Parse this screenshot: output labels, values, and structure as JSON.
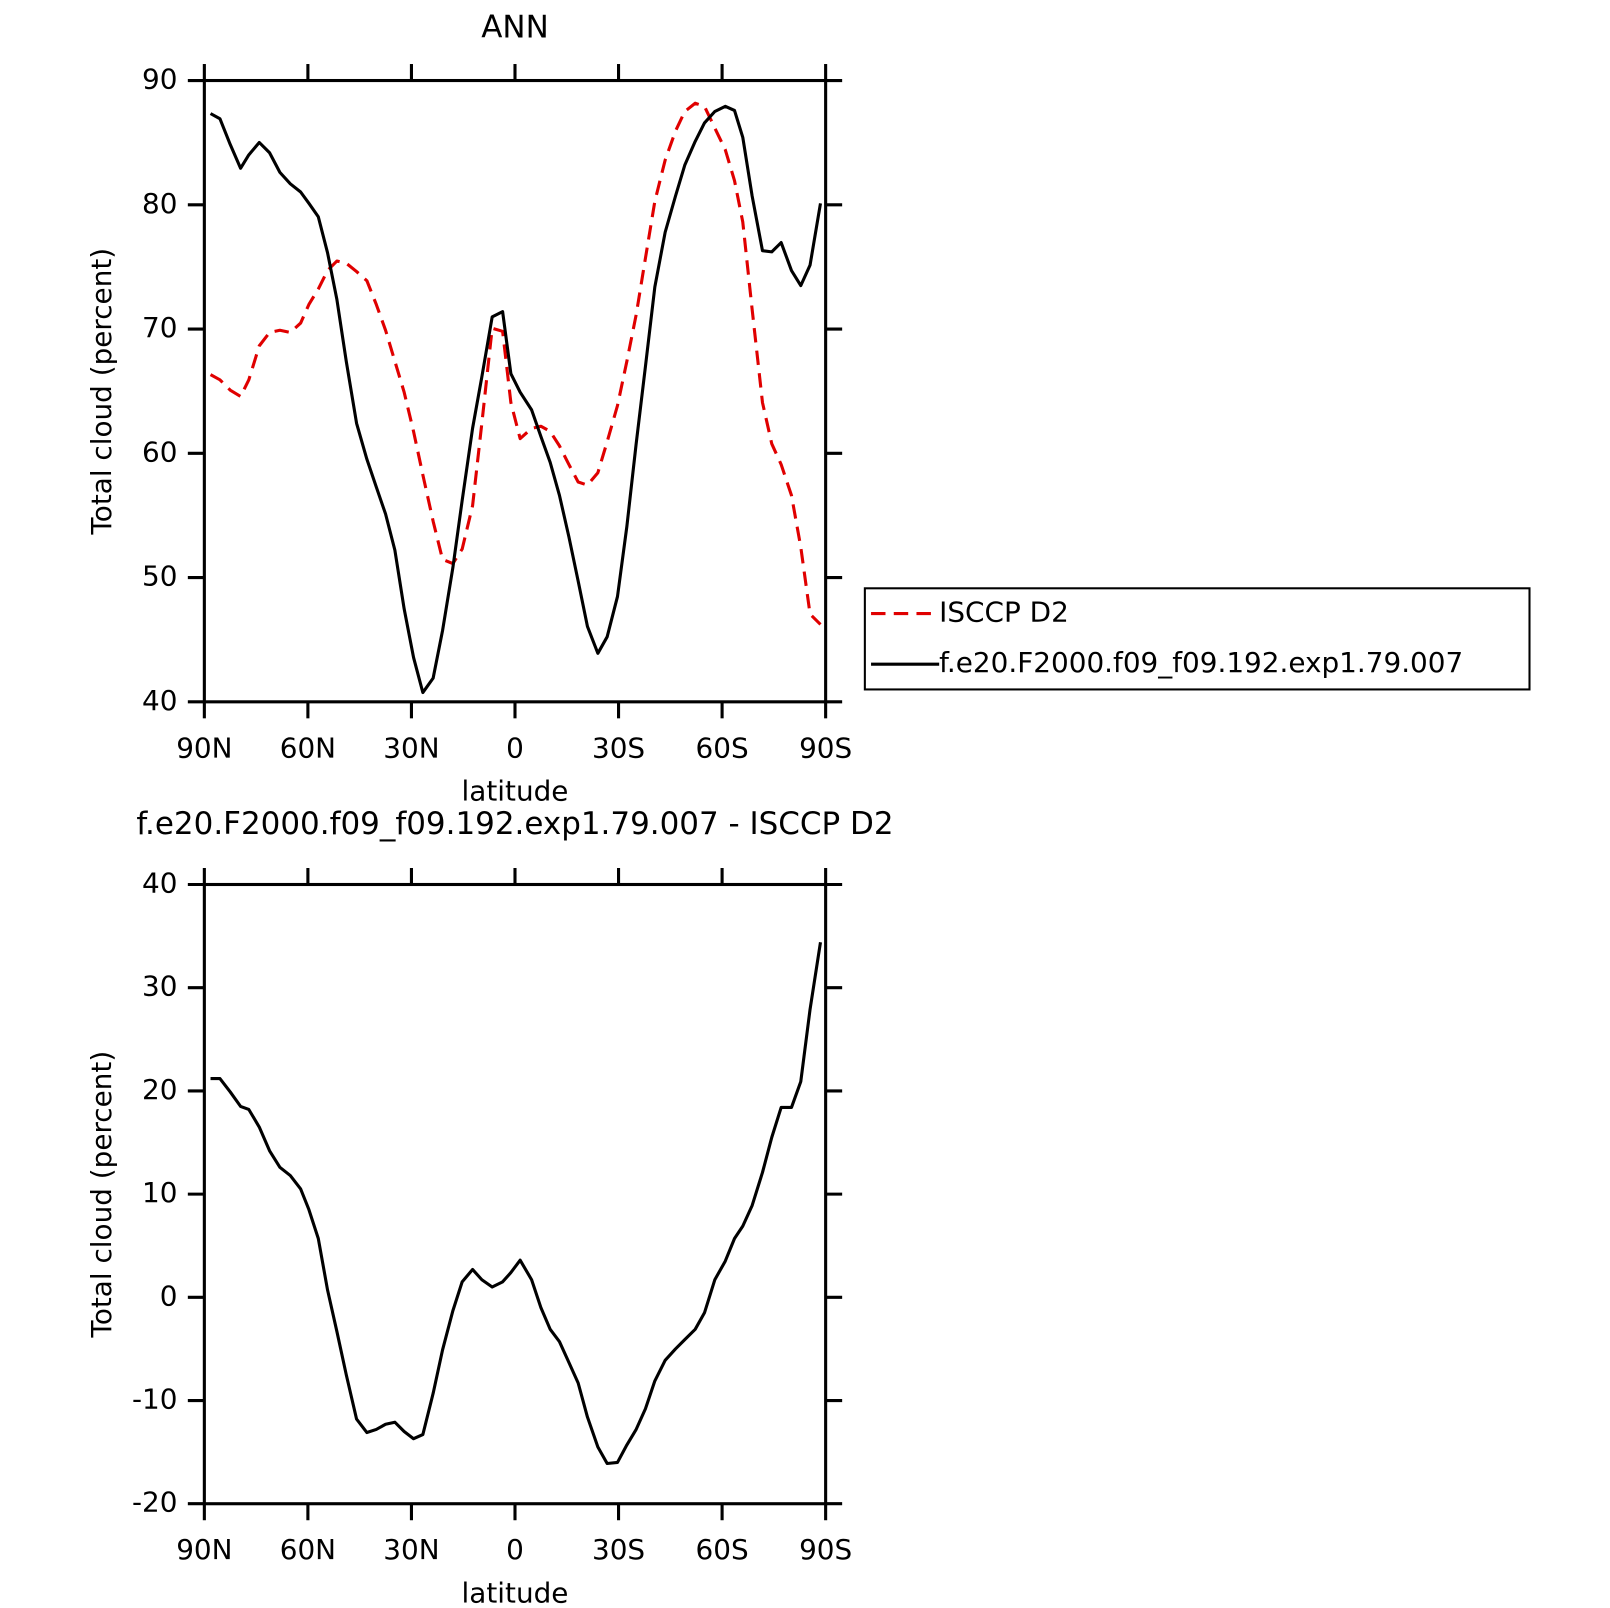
{
  "chart_data": [
    {
      "type": "line",
      "title": "ANN",
      "xlabel": "latitude",
      "ylabel": "Total cloud (percent)",
      "x": [
        88.2,
        85.5,
        82.5,
        79.5,
        77.1,
        74.1,
        71.1,
        68.1,
        65.1,
        62.1,
        59.7,
        57.0,
        54.3,
        51.6,
        48.9,
        45.9,
        42.9,
        40.2,
        37.5,
        34.8,
        32.1,
        29.4,
        26.7,
        23.7,
        21.0,
        18.0,
        15.3,
        12.3,
        9.6,
        6.6,
        3.6,
        1.2,
        -1.5,
        -4.8,
        -7.5,
        -10.2,
        -12.9,
        -15.6,
        -18.3,
        -21.0,
        -24.0,
        -26.7,
        -29.7,
        -32.4,
        -35.1,
        -37.8,
        -40.5,
        -43.5,
        -46.5,
        -49.2,
        -52.2,
        -54.9,
        -57.9,
        -60.9,
        -63.6,
        -66.0,
        -68.7,
        -71.7,
        -74.4,
        -77.1,
        -80.1,
        -82.8,
        -85.5,
        -88.5
      ],
      "series": [
        {
          "name": "ISCCP D2",
          "color": "#e00000",
          "line_style": "dashed",
          "values": [
            66.33,
            65.91,
            65.08,
            64.58,
            65.91,
            68.65,
            69.73,
            69.9,
            69.73,
            70.48,
            71.98,
            73.22,
            74.72,
            75.47,
            75.3,
            74.63,
            73.89,
            71.98,
            69.9,
            67.41,
            64.92,
            61.76,
            58.27,
            54.53,
            51.46,
            51.13,
            52.29,
            55.78,
            62.43,
            70.07,
            69.82,
            64.09,
            61.18,
            62.01,
            62.18,
            61.76,
            60.6,
            59.1,
            57.69,
            57.44,
            58.44,
            60.93,
            63.84,
            67.41,
            71.15,
            75.71,
            80.28,
            83.6,
            85.93,
            87.51,
            88.17,
            87.92,
            86.18,
            84.44,
            81.94,
            78.62,
            71.56,
            64.09,
            60.76,
            59.1,
            56.61,
            52.46,
            47.06,
            46.23
          ]
        },
        {
          "name": "f.e20.F2000.f09_f09.192.exp1.79.007",
          "color": "#000000",
          "line_style": "solid",
          "values": [
            87.34,
            86.93,
            84.85,
            82.94,
            84.02,
            85.02,
            84.19,
            82.61,
            81.69,
            81.03,
            80.12,
            79.04,
            76.13,
            72.39,
            67.41,
            62.42,
            59.52,
            57.28,
            55.12,
            52.21,
            47.48,
            43.57,
            40.75,
            41.91,
            45.73,
            50.8,
            56.2,
            62.01,
            66.16,
            70.98,
            71.4,
            66.41,
            64.92,
            63.5,
            61.35,
            59.27,
            56.61,
            53.29,
            49.72,
            46.06,
            43.9,
            45.23,
            48.47,
            54.12,
            60.76,
            66.99,
            73.39,
            77.79,
            80.7,
            83.19,
            85.1,
            86.59,
            87.51,
            87.92,
            87.59,
            85.43,
            80.7,
            76.3,
            76.21,
            76.96,
            74.71,
            73.5,
            75.14,
            80.12
          ]
        }
      ],
      "xlim": [
        90,
        -90
      ],
      "xticks": [
        {
          "value": 90,
          "label": "90N"
        },
        {
          "value": 60,
          "label": "60N"
        },
        {
          "value": 30,
          "label": "30N"
        },
        0,
        {
          "value": -30,
          "label": "30S"
        },
        {
          "value": -60,
          "label": "60S"
        },
        {
          "value": -90,
          "label": "90S"
        }
      ],
      "ylim": [
        40,
        90
      ],
      "yticks": [
        40,
        50,
        60,
        70,
        80,
        90
      ],
      "legend": "right"
    },
    {
      "type": "line",
      "title": "f.e20.F2000.f09_f09.192.exp1.79.007 - ISCCP D2",
      "xlabel": "latitude",
      "ylabel": "Total cloud (percent)",
      "x": [
        88.2,
        85.5,
        82.5,
        79.5,
        77.1,
        74.1,
        71.1,
        68.1,
        65.1,
        62.1,
        59.7,
        57.0,
        54.3,
        51.6,
        48.9,
        45.9,
        42.9,
        40.2,
        37.5,
        34.8,
        32.1,
        29.4,
        26.7,
        23.7,
        21.0,
        18.0,
        15.3,
        12.3,
        9.6,
        6.6,
        3.6,
        1.2,
        -1.5,
        -4.8,
        -7.5,
        -10.2,
        -12.9,
        -15.6,
        -18.3,
        -21.0,
        -24.0,
        -26.7,
        -29.7,
        -32.4,
        -35.1,
        -37.8,
        -40.5,
        -43.5,
        -46.5,
        -49.2,
        -52.2,
        -54.9,
        -57.9,
        -60.9,
        -63.6,
        -66.0,
        -68.7,
        -71.7,
        -74.4,
        -77.1,
        -80.1,
        -82.8,
        -85.5,
        -88.5
      ],
      "values": [
        21.2,
        21.2,
        19.9,
        18.5,
        18.2,
        16.5,
        14.2,
        12.6,
        11.8,
        10.5,
        8.5,
        5.7,
        0.7,
        -3.3,
        -7.5,
        -11.8,
        -13.1,
        -12.8,
        -12.3,
        -12.1,
        -13.0,
        -13.7,
        -13.3,
        -9.3,
        -5.1,
        -1.3,
        1.5,
        2.7,
        1.7,
        1.0,
        1.5,
        2.4,
        3.6,
        1.7,
        -1.0,
        -3.1,
        -4.3,
        -6.3,
        -8.3,
        -11.6,
        -14.5,
        -16.1,
        -16.0,
        -14.3,
        -12.8,
        -10.8,
        -8.1,
        -6.1,
        -5.0,
        -4.1,
        -3.1,
        -1.5,
        1.7,
        3.5,
        5.7,
        6.9,
        8.9,
        12.1,
        15.5,
        18.4,
        18.4,
        20.9,
        27.9,
        34.4
      ],
      "color": "#000000",
      "xlim": [
        90,
        -90
      ],
      "xticks": [
        {
          "value": 90,
          "label": "90N"
        },
        {
          "value": 60,
          "label": "60N"
        },
        {
          "value": 30,
          "label": "30N"
        },
        0,
        {
          "value": -30,
          "label": "30S"
        },
        {
          "value": -60,
          "label": "60S"
        },
        {
          "value": -90,
          "label": "90S"
        }
      ],
      "ylim": [
        -20,
        40
      ],
      "yticks": [
        -20,
        -10,
        0,
        10,
        20,
        30,
        40
      ]
    }
  ]
}
